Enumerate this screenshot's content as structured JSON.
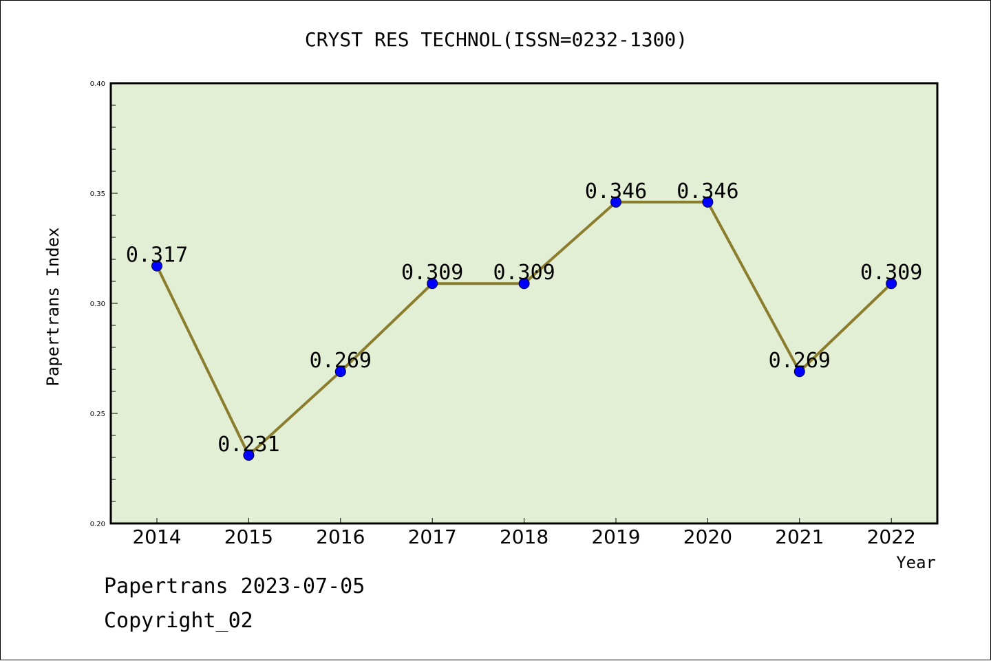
{
  "chart_data": {
    "type": "line",
    "title": "CRYST RES TECHNOL(ISSN=0232-1300)",
    "xlabel": "Year",
    "ylabel": "Papertrans Index",
    "categories": [
      "2014",
      "2015",
      "2016",
      "2017",
      "2018",
      "2019",
      "2020",
      "2021",
      "2022"
    ],
    "series": [
      {
        "values": [
          0.317,
          0.231,
          0.269,
          0.309,
          0.309,
          0.346,
          0.346,
          0.269,
          0.309
        ],
        "data_labels": [
          "0.317",
          "0.231",
          "0.269",
          "0.309",
          "0.309",
          "0.346",
          "0.346",
          "0.269",
          "0.309"
        ]
      }
    ],
    "ylim": [
      0.2,
      0.4
    ],
    "yticks": [
      "0.20",
      "0.25",
      "0.30",
      "0.35",
      "0.40"
    ],
    "yticks_values": [
      0.2,
      0.25,
      0.3,
      0.35,
      0.4
    ],
    "grid": false,
    "legend": "none",
    "colors": {
      "plot_background": "#e2efd5",
      "line": "#8b7d2e",
      "marker": "#0000ff",
      "axis": "#000000"
    }
  },
  "footer": {
    "line1": "Papertrans 2023-07-05",
    "line2": "Copyright_02"
  }
}
